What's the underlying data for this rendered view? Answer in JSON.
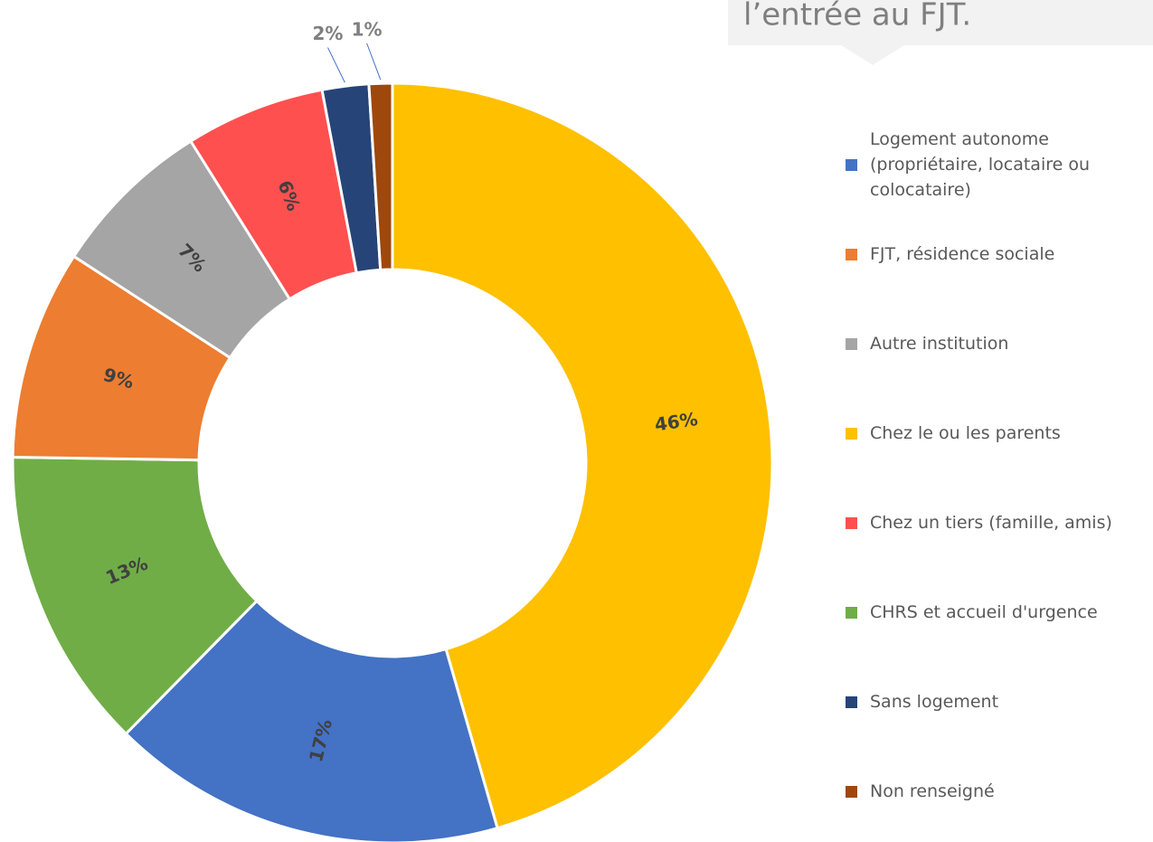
{
  "callout": "l’entrée au FJT.",
  "chart_data": {
    "type": "donut",
    "categories": [
      "Logement autonome (propriétaire, locataire ou colocataire)",
      "FJT, résidence sociale",
      "Autre institution",
      "Chez le ou les parents",
      "Chez un tiers (famille, amis)",
      "CHRS et accueil d'urgence",
      "Sans logement",
      "Non renseigné"
    ],
    "values": [
      17,
      9,
      7,
      46,
      6,
      13,
      2,
      1
    ],
    "value_labels": [
      "17%",
      "9%",
      "7%",
      "46%",
      "6%",
      "13%",
      "2%",
      "1%"
    ],
    "colors": [
      "#4472c4",
      "#ed7d31",
      "#a5a5a5",
      "#ffc000",
      "#ff5050",
      "#70ad47",
      "#264478",
      "#9e480e"
    ],
    "legend": "right"
  }
}
